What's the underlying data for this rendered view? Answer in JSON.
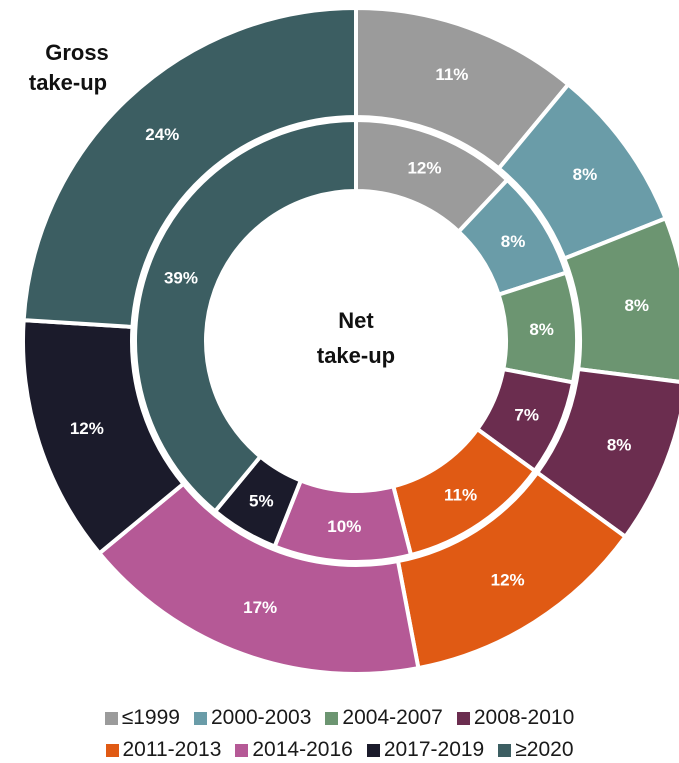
{
  "chart_data": {
    "type": "donut",
    "categories": [
      "≤1999",
      "2000-2003",
      "2004-2007",
      "2008-2010",
      "2011-2013",
      "2014-2016",
      "2017-2019",
      "≥2020"
    ],
    "colors": [
      "#9b9b9b",
      "#6a9ca8",
      "#6c9571",
      "#6b2d4f",
      "#e05a14",
      "#b55996",
      "#1b1b2b",
      "#3c5e62"
    ],
    "series": [
      {
        "name": "Gross take-up",
        "ring": "outer",
        "values": [
          11,
          8,
          8,
          8,
          12,
          17,
          12,
          24
        ],
        "labels": [
          "11%",
          "8%",
          "8%",
          "8%",
          "12%",
          "17%",
          "12%",
          "24%"
        ]
      },
      {
        "name": "Net take-up",
        "ring": "inner",
        "values": [
          12,
          8,
          8,
          7,
          11,
          10,
          5,
          39
        ],
        "labels": [
          "12%",
          "8%",
          "8%",
          "7%",
          "11%",
          "10%",
          "5%",
          "39%"
        ]
      }
    ],
    "outer_title": [
      "Gross",
      "take-up"
    ],
    "center_title": [
      "Net",
      "take-up"
    ],
    "legend": {
      "position": "bottom",
      "rows": [
        [
          "≤1999",
          "2000-2003",
          "2004-2007",
          "2008-2010"
        ],
        [
          "2011-2013",
          "2014-2016",
          "2017-2019",
          "≥2020"
        ]
      ]
    }
  }
}
